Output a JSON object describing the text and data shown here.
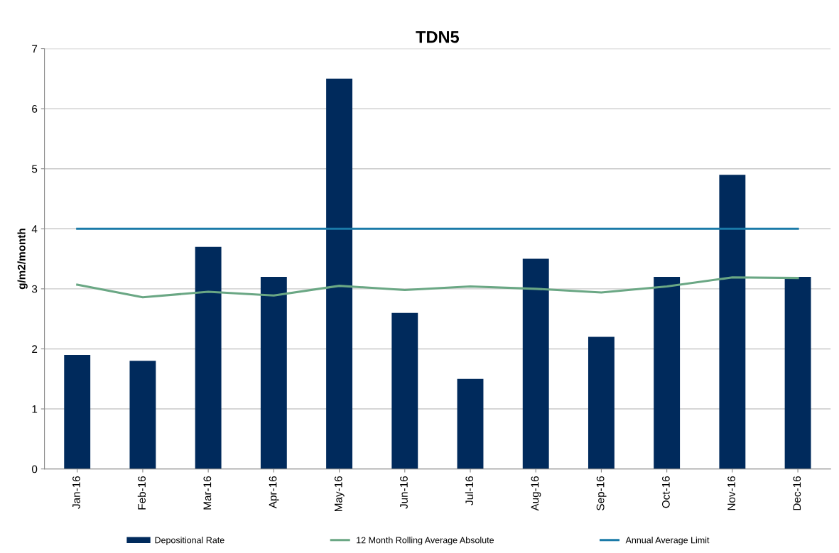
{
  "chart_data": {
    "type": "bar",
    "title": "TDN5",
    "ylabel": "g/m2/month",
    "categories": [
      "Jan-16",
      "Feb-16",
      "Mar-16",
      "Apr-16",
      "May-16",
      "Jun-16",
      "Jul-16",
      "Aug-16",
      "Sep-16",
      "Oct-16",
      "Nov-16",
      "Dec-16"
    ],
    "series": [
      {
        "name": "Depositional Rate",
        "color": "#002a5c",
        "values": [
          1.9,
          1.8,
          3.7,
          3.2,
          6.5,
          2.6,
          1.5,
          3.5,
          2.2,
          3.2,
          4.9,
          3.2
        ]
      },
      {
        "name": "12 Month Rolling Average Absolute",
        "type": "line",
        "color": "#6aa784",
        "values": [
          3.07,
          2.86,
          2.95,
          2.89,
          3.05,
          2.98,
          3.04,
          3.0,
          2.94,
          3.04,
          3.19,
          3.18
        ]
      },
      {
        "name": "Annual Average Limit",
        "type": "line",
        "color": "#1a7aa8",
        "values": [
          4,
          4,
          4,
          4,
          4,
          4,
          4,
          4,
          4,
          4,
          4,
          4
        ]
      }
    ],
    "ylim": [
      0,
      7
    ],
    "yticks": [
      0,
      1,
      2,
      3,
      4,
      5,
      6,
      7
    ],
    "grid": "y",
    "legend": "bottom"
  }
}
